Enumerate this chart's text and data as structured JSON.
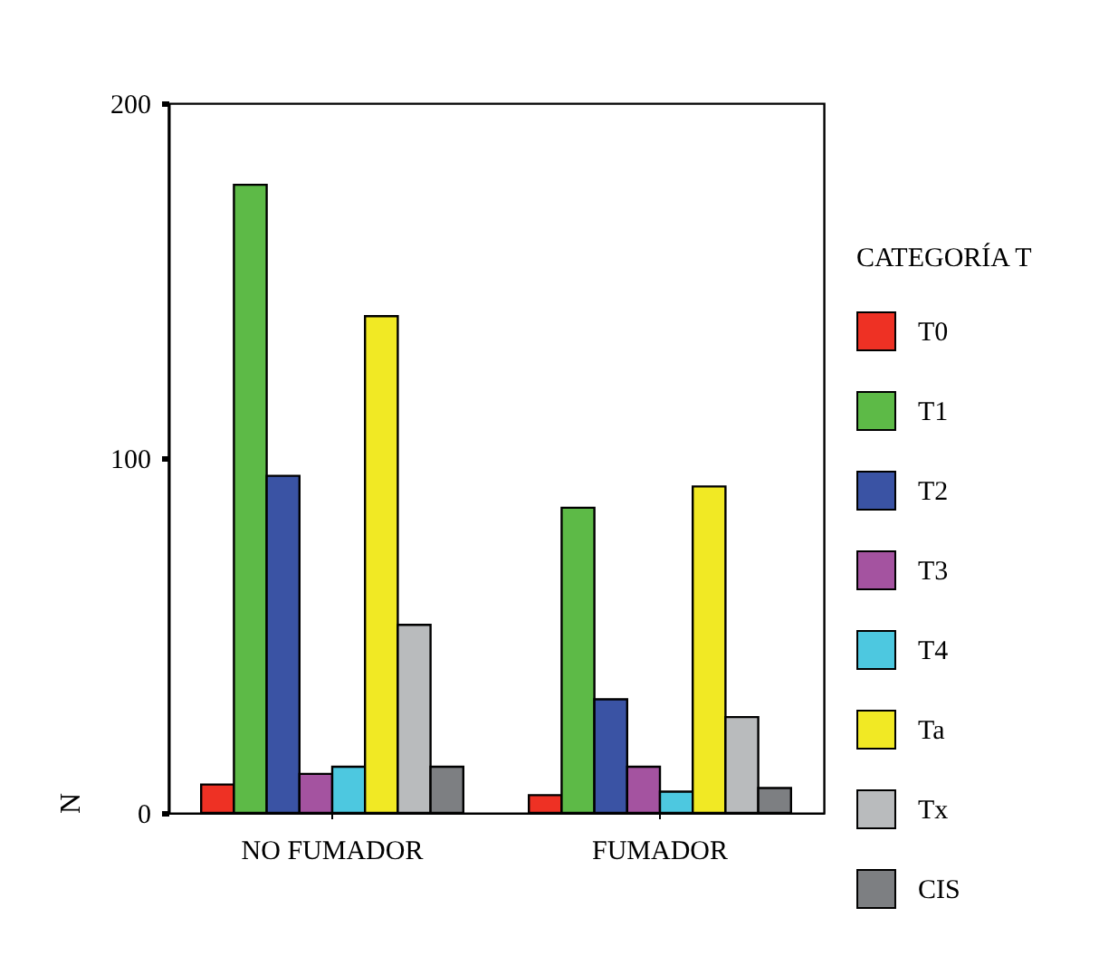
{
  "chart_data": {
    "type": "bar",
    "ylabel": "N",
    "legend_title": "CATEGORÍA T",
    "categories": [
      "NO FUMADOR",
      "FUMADOR"
    ],
    "series": [
      {
        "name": "T0",
        "color": "#ee3124",
        "values": [
          8,
          5
        ]
      },
      {
        "name": "T1",
        "color": "#5dba47",
        "values": [
          177,
          86
        ]
      },
      {
        "name": "T2",
        "color": "#3a53a4",
        "values": [
          95,
          32
        ]
      },
      {
        "name": "T3",
        "color": "#a453a0",
        "values": [
          11,
          13
        ]
      },
      {
        "name": "T4",
        "color": "#4dc8e0",
        "values": [
          13,
          6
        ]
      },
      {
        "name": "Ta",
        "color": "#f1e924",
        "values": [
          140,
          92
        ]
      },
      {
        "name": "Tx",
        "color": "#b9bbbd",
        "values": [
          53,
          27
        ]
      },
      {
        "name": "CIS",
        "color": "#7d7f82",
        "values": [
          13,
          7
        ]
      }
    ],
    "ylim": [
      0,
      200
    ],
    "yticks": [
      0,
      100,
      200
    ],
    "grid": false,
    "legend": "right"
  }
}
